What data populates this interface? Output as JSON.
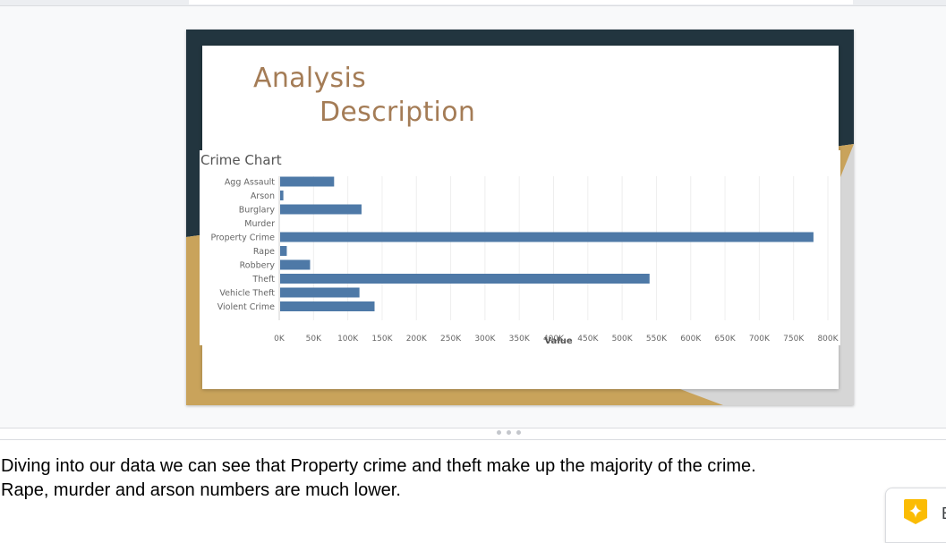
{
  "slide": {
    "title_line1": "Analysis",
    "title_line2": "Description",
    "colors": {
      "dark": "#22353f",
      "gold": "#c9a35b",
      "title": "#a47c56",
      "bar": "#4e79a7"
    }
  },
  "chart_data": {
    "type": "bar",
    "orientation": "horizontal",
    "title": "Crime Chart",
    "categories": [
      "Agg Assault",
      "Arson",
      "Burglary",
      "Murder",
      "Property Crime",
      "Rape",
      "Robbery",
      "Theft",
      "Vehicle Theft",
      "Violent Crime"
    ],
    "values": [
      80000,
      6000,
      120000,
      0,
      779000,
      11000,
      45000,
      540000,
      117000,
      139000
    ],
    "xlabel": "Value",
    "xlim": [
      0,
      800000
    ],
    "ticks": [
      "0K",
      "50K",
      "100K",
      "150K",
      "200K",
      "250K",
      "300K",
      "350K",
      "400K",
      "450K",
      "500K",
      "550K",
      "600K",
      "650K",
      "700K",
      "750K",
      "800K"
    ],
    "grid": true
  },
  "notes": {
    "line1": "Diving into our data we can see that Property crime and theft make up the majority of the crime.",
    "line2": "Rape, murder and arson numbers are much lower."
  },
  "assist_chip": {
    "icon": "sparkle-icon",
    "label": "E"
  }
}
